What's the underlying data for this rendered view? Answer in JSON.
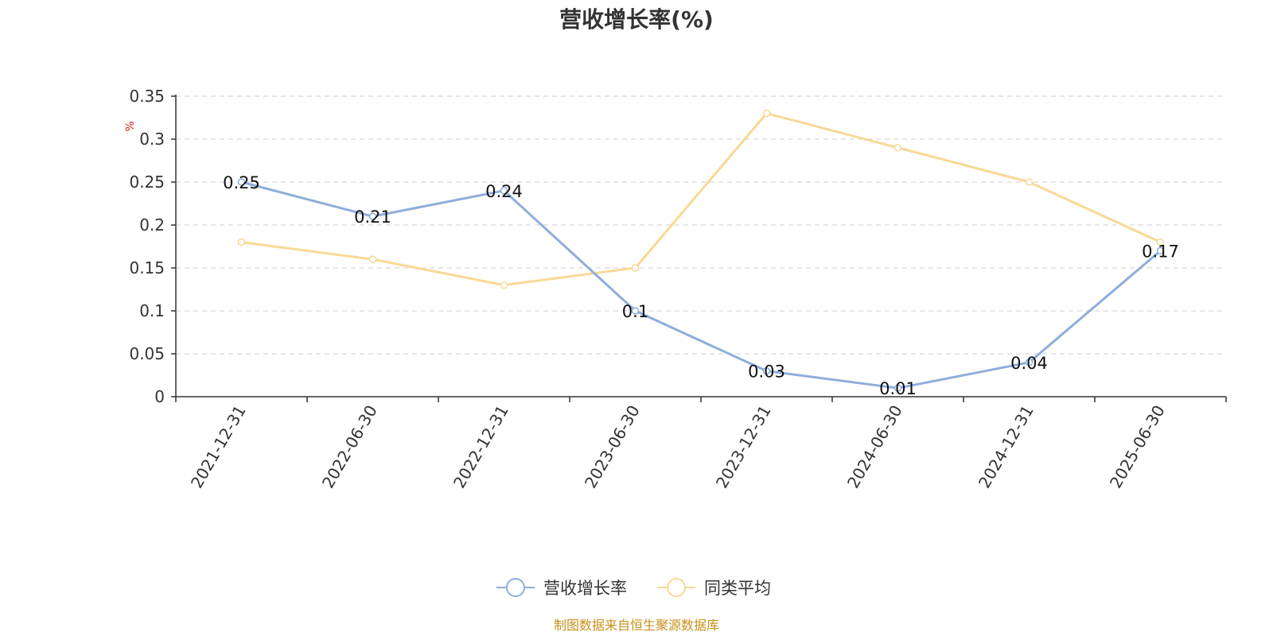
{
  "chart_data": {
    "type": "line",
    "title": "营收增长率(%)",
    "ylabel": "%",
    "categories": [
      "2021-12-31",
      "2022-06-30",
      "2022-12-31",
      "2023-06-30",
      "2023-12-31",
      "2024-06-30",
      "2024-12-31",
      "2025-06-30"
    ],
    "ylim": [
      0,
      0.35
    ],
    "yticks": [
      "0",
      "0.05",
      "0.1",
      "0.15",
      "0.2",
      "0.25",
      "0.3",
      "0.35"
    ],
    "grid": true,
    "legend_position": "bottom",
    "series": [
      {
        "name": "营收增长率",
        "color": "#8eaedb",
        "values": [
          0.25,
          0.21,
          0.24,
          0.1,
          0.03,
          0.01,
          0.04,
          0.17
        ],
        "labels": [
          "0.25",
          "0.21",
          "0.24",
          "0.1",
          "0.03",
          "0.01",
          "0.04",
          "0.17"
        ]
      },
      {
        "name": "同类平均",
        "color": "#f9d896",
        "values": [
          0.18,
          0.16,
          0.13,
          0.15,
          0.33,
          0.29,
          0.25,
          0.18
        ]
      }
    ],
    "ylabel_color": "#e02020"
  },
  "source_text": "制图数据来自恒生聚源数据库",
  "source_color": "#c8901a"
}
